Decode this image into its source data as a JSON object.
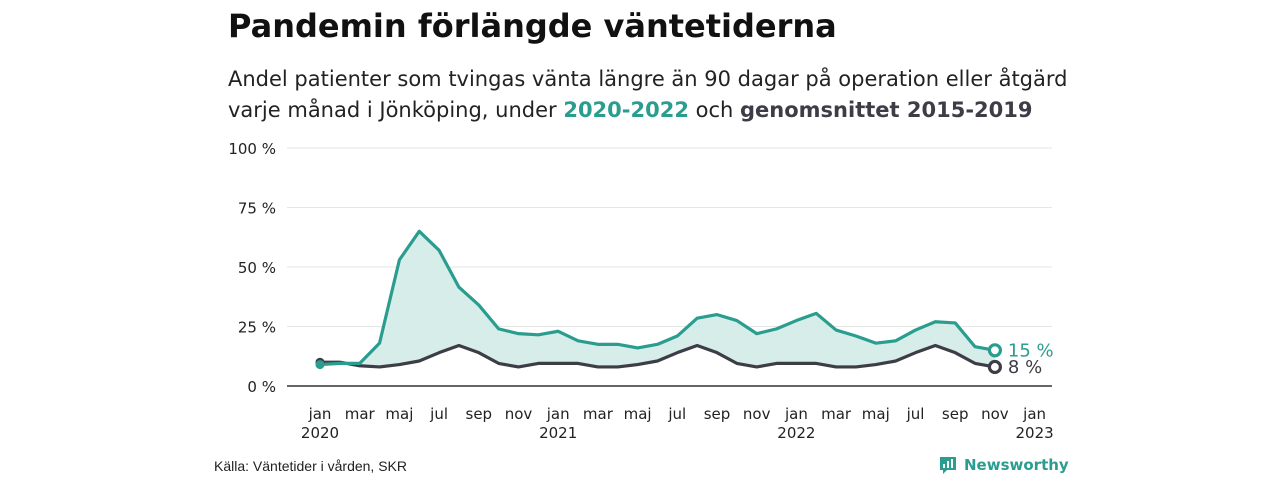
{
  "header": {
    "title": "Pandemin förlängde väntetiderna",
    "subtitle_line1": "Andel patienter som tvingas vänta längre än 90 dagar på operation eller åtgärd",
    "subtitle_line2_pre": "varje månad i Jönköping, under ",
    "subtitle_series1": "2020-2022",
    "subtitle_mid": " och ",
    "subtitle_series2": "genomsnittet 2015-2019"
  },
  "chart_data": {
    "type": "area",
    "ylim": [
      0,
      100
    ],
    "y_ticks": [
      0,
      25,
      50,
      75,
      100
    ],
    "y_tick_labels": [
      "0 %",
      "25 %",
      "50 %",
      "75 %",
      "100 %"
    ],
    "x_ticks": [
      {
        "month": "jan",
        "year": "2020"
      },
      {
        "month": "mar",
        "year": ""
      },
      {
        "month": "maj",
        "year": ""
      },
      {
        "month": "jul",
        "year": ""
      },
      {
        "month": "sep",
        "year": ""
      },
      {
        "month": "nov",
        "year": ""
      },
      {
        "month": "jan",
        "year": "2021"
      },
      {
        "month": "mar",
        "year": ""
      },
      {
        "month": "maj",
        "year": ""
      },
      {
        "month": "jul",
        "year": ""
      },
      {
        "month": "sep",
        "year": ""
      },
      {
        "month": "nov",
        "year": ""
      },
      {
        "month": "jan",
        "year": "2022"
      },
      {
        "month": "mar",
        "year": ""
      },
      {
        "month": "maj",
        "year": ""
      },
      {
        "month": "jul",
        "year": ""
      },
      {
        "month": "sep",
        "year": ""
      },
      {
        "month": "nov",
        "year": ""
      },
      {
        "month": "jan",
        "year": "2023"
      }
    ],
    "grid": true,
    "series": [
      {
        "name": "2020-2022",
        "color": "#2a9d8f",
        "values": [
          9,
          9.5,
          9.5,
          18,
          53,
          65,
          57,
          41.5,
          34,
          24,
          22,
          21.5,
          23,
          19,
          17.5,
          17.5,
          16,
          17.5,
          21,
          28.5,
          30,
          27.5,
          22,
          24,
          27.5,
          30.5,
          23.5,
          21,
          18,
          19,
          23.5,
          27,
          26.5,
          16.5,
          15
        ],
        "end_label": "15 %"
      },
      {
        "name": "genomsnittet 2015-2019",
        "color": "#3d3d47",
        "values": [
          10,
          10,
          8.5,
          8,
          9,
          10.5,
          14,
          17,
          14,
          9.5,
          8,
          9.5,
          9.5,
          9.5,
          8,
          8,
          9,
          10.5,
          14,
          17,
          14,
          9.5,
          8,
          9.5,
          9.5,
          9.5,
          8,
          8,
          9,
          10.5,
          14,
          17,
          14,
          9.5,
          8
        ],
        "end_label": "8 %"
      }
    ],
    "fill_color": "#d3ebe7"
  },
  "footer": {
    "source": "Källa: Väntetider i vården, SKR",
    "brand": "Newsworthy"
  }
}
